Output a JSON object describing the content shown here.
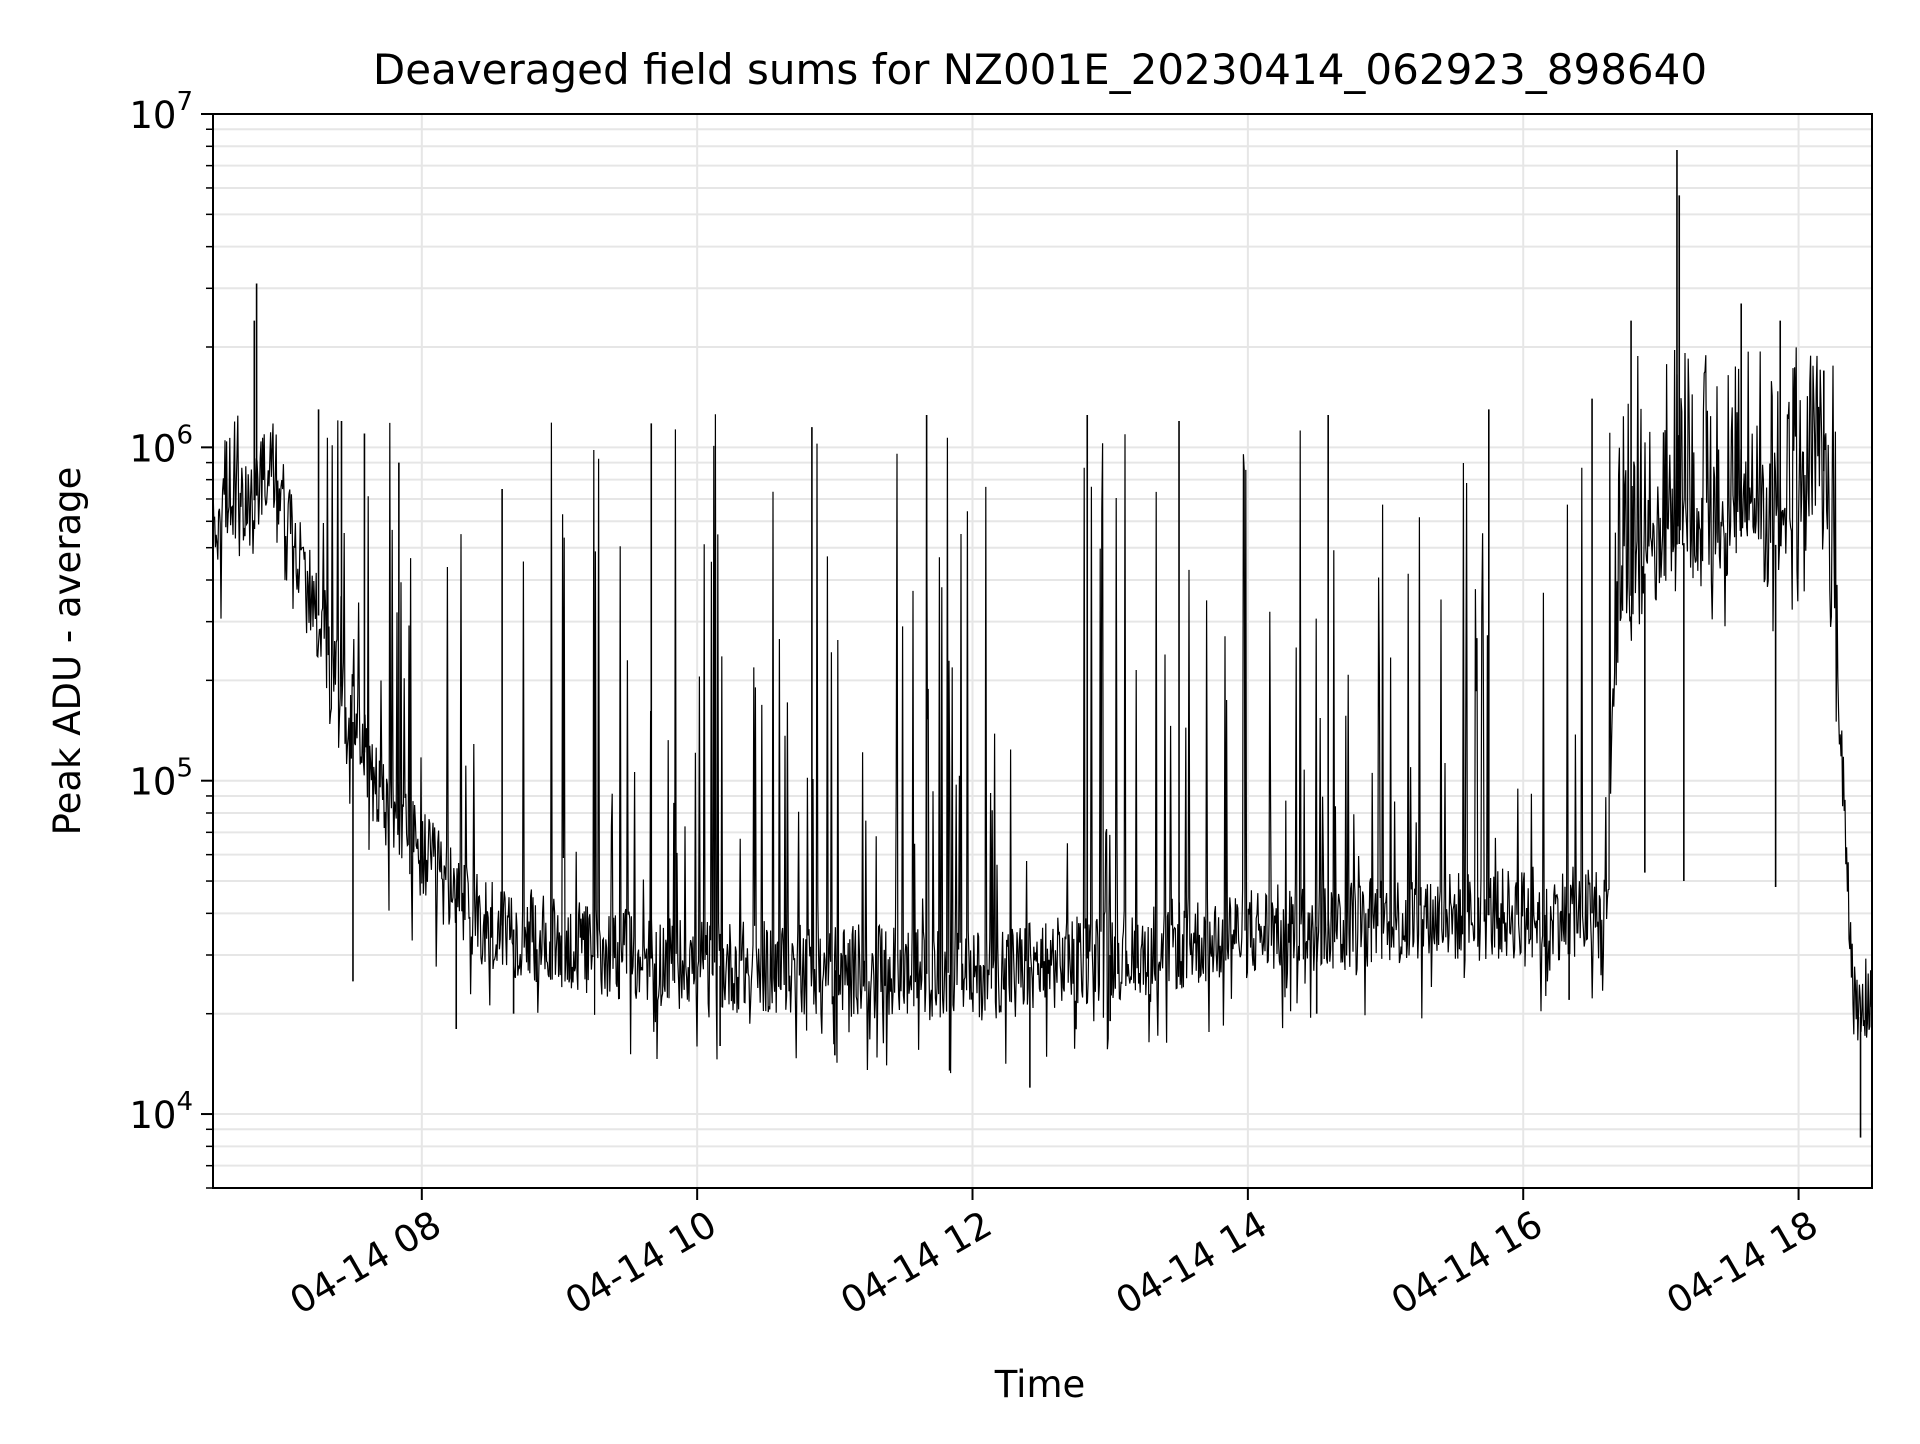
{
  "chart_data": {
    "type": "line",
    "title": "Deaveraged field sums for NZ001E_20230414_062923_898640",
    "xlabel": "Time",
    "ylabel": "Peak ADU - average",
    "yscale": "log",
    "ylim": [
      6000,
      10000000
    ],
    "xlim": [
      "2023-04-14 06:29",
      "2023-04-14 18:32"
    ],
    "grid": "on (major and minor)",
    "line_color": "#000000",
    "x_ticks": [
      {
        "value": "2023-04-14 08:00",
        "label": "04-14 08"
      },
      {
        "value": "2023-04-14 10:00",
        "label": "04-14 10"
      },
      {
        "value": "2023-04-14 12:00",
        "label": "04-14 12"
      },
      {
        "value": "2023-04-14 14:00",
        "label": "04-14 14"
      },
      {
        "value": "2023-04-14 16:00",
        "label": "04-14 16"
      },
      {
        "value": "2023-04-14 18:00",
        "label": "04-14 18"
      }
    ],
    "y_ticks": [
      {
        "value": 10000,
        "base": "10",
        "exp": "4"
      },
      {
        "value": 100000,
        "base": "10",
        "exp": "5"
      },
      {
        "value": 1000000,
        "base": "10",
        "exp": "6"
      },
      {
        "value": 10000000,
        "base": "10",
        "exp": "7"
      }
    ],
    "series": [
      {
        "baseline": {
          "x": [
            "2023-04-14 06:29",
            "2023-04-14 06:45",
            "2023-04-14 06:55",
            "2023-04-14 07:10",
            "2023-04-14 07:30",
            "2023-04-14 07:45",
            "2023-04-14 08:00",
            "2023-04-14 08:20",
            "2023-04-14 09:00",
            "2023-04-14 10:00",
            "2023-04-14 11:00",
            "2023-04-14 12:00",
            "2023-04-14 13:00",
            "2023-04-14 14:00",
            "2023-04-14 15:00",
            "2023-04-14 16:00",
            "2023-04-14 16:37",
            "2023-04-14 16:40",
            "2023-04-14 17:00",
            "2023-04-14 17:30",
            "2023-04-14 17:55",
            "2023-04-14 18:05",
            "2023-04-14 18:10",
            "2023-04-14 18:15",
            "2023-04-14 18:20",
            "2023-04-14 18:25",
            "2023-04-14 18:32"
          ],
          "y": [
            580000,
            650000,
            900000,
            400000,
            150000,
            80000,
            60000,
            40000,
            32000,
            28000,
            27000,
            26000,
            30000,
            35000,
            38000,
            40000,
            40000,
            300000,
            500000,
            550000,
            500000,
            700000,
            1100000,
            300000,
            80000,
            18000,
            24000
          ]
        },
        "spikes": [
          {
            "x": "2023-04-14 06:48",
            "y": 3100000
          },
          {
            "x": "2023-04-14 06:47",
            "y": 2400000
          },
          {
            "x": "2023-04-14 07:15",
            "y": 1300000
          },
          {
            "x": "2023-04-14 07:25",
            "y": 1200000
          },
          {
            "x": "2023-04-14 07:35",
            "y": 1100000
          },
          {
            "x": "2023-04-14 07:50",
            "y": 900000
          },
          {
            "x": "2023-04-14 08:35",
            "y": 750000
          },
          {
            "x": "2023-04-14 09:40",
            "y": 1180000
          },
          {
            "x": "2023-04-14 10:50",
            "y": 1150000
          },
          {
            "x": "2023-04-14 11:40",
            "y": 1250000
          },
          {
            "x": "2023-04-14 12:50",
            "y": 1250000
          },
          {
            "x": "2023-04-14 13:30",
            "y": 1200000
          },
          {
            "x": "2023-04-14 14:35",
            "y": 1250000
          },
          {
            "x": "2023-04-14 15:45",
            "y": 1300000
          },
          {
            "x": "2023-04-14 16:30",
            "y": 1400000
          },
          {
            "x": "2023-04-14 16:47",
            "y": 2400000
          },
          {
            "x": "2023-04-14 17:07",
            "y": 7800000
          },
          {
            "x": "2023-04-14 17:08",
            "y": 5700000
          },
          {
            "x": "2023-04-14 17:35",
            "y": 2700000
          },
          {
            "x": "2023-04-14 17:52",
            "y": 2400000
          },
          {
            "x": "2023-04-14 18:11",
            "y": 1700000
          }
        ],
        "dips": [
          {
            "x": "2023-04-14 07:30",
            "y": 25000
          },
          {
            "x": "2023-04-14 08:15",
            "y": 18000
          },
          {
            "x": "2023-04-14 08:40",
            "y": 20000
          },
          {
            "x": "2023-04-14 10:10",
            "y": 16000
          },
          {
            "x": "2023-04-14 11:00",
            "y": 15000
          },
          {
            "x": "2023-04-14 11:50",
            "y": 13500
          },
          {
            "x": "2023-04-14 12:25",
            "y": 12000
          },
          {
            "x": "2023-04-14 13:00",
            "y": 19000
          },
          {
            "x": "2023-04-14 14:30",
            "y": 20000
          },
          {
            "x": "2023-04-14 16:20",
            "y": 22000
          },
          {
            "x": "2023-04-14 16:53",
            "y": 53000
          },
          {
            "x": "2023-04-14 17:10",
            "y": 50000
          },
          {
            "x": "2023-04-14 17:50",
            "y": 48000
          },
          {
            "x": "2023-04-14 18:27",
            "y": 8500
          }
        ]
      }
    ]
  }
}
